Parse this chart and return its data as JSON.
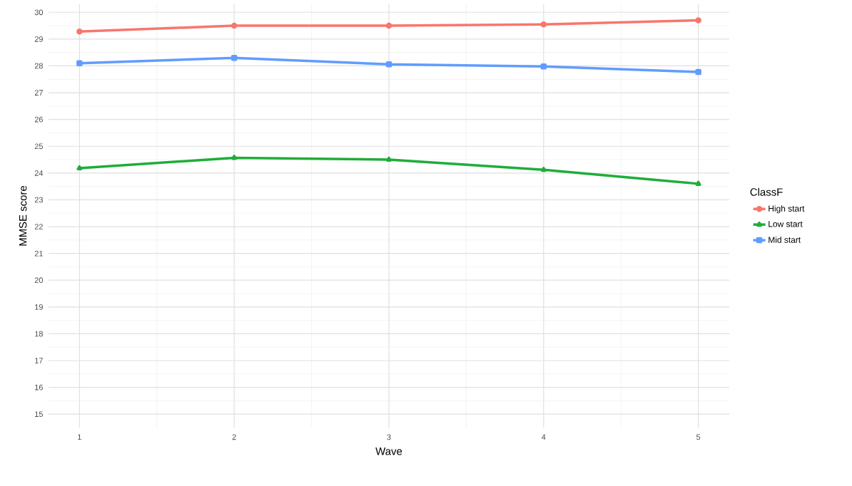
{
  "chart_data": {
    "type": "line",
    "xlabel": "Wave",
    "ylabel": "MMSE score",
    "legend_title": "ClassF",
    "x": [
      1,
      2,
      3,
      4,
      5
    ],
    "series": [
      {
        "name": "High start",
        "color": "#f8766d",
        "marker": "circle",
        "values": [
          29.28,
          29.5,
          29.5,
          29.55,
          29.7
        ]
      },
      {
        "name": "Low start",
        "color": "#1fad3a",
        "marker": "triangle",
        "values": [
          24.18,
          24.57,
          24.5,
          24.12,
          23.6
        ]
      },
      {
        "name": "Mid start",
        "color": "#619cff",
        "marker": "square",
        "values": [
          28.1,
          28.3,
          28.06,
          27.98,
          27.77
        ]
      }
    ],
    "xlim": [
      0.8,
      5.2
    ],
    "ylim": [
      14.5,
      30.3
    ],
    "xticks": [
      1,
      2,
      3,
      4,
      5
    ],
    "yticks": [
      15,
      16,
      17,
      18,
      19,
      20,
      21,
      22,
      23,
      24,
      25,
      26,
      27,
      28,
      29,
      30
    ],
    "grid": true,
    "legend": "right",
    "line_style": "solid"
  }
}
